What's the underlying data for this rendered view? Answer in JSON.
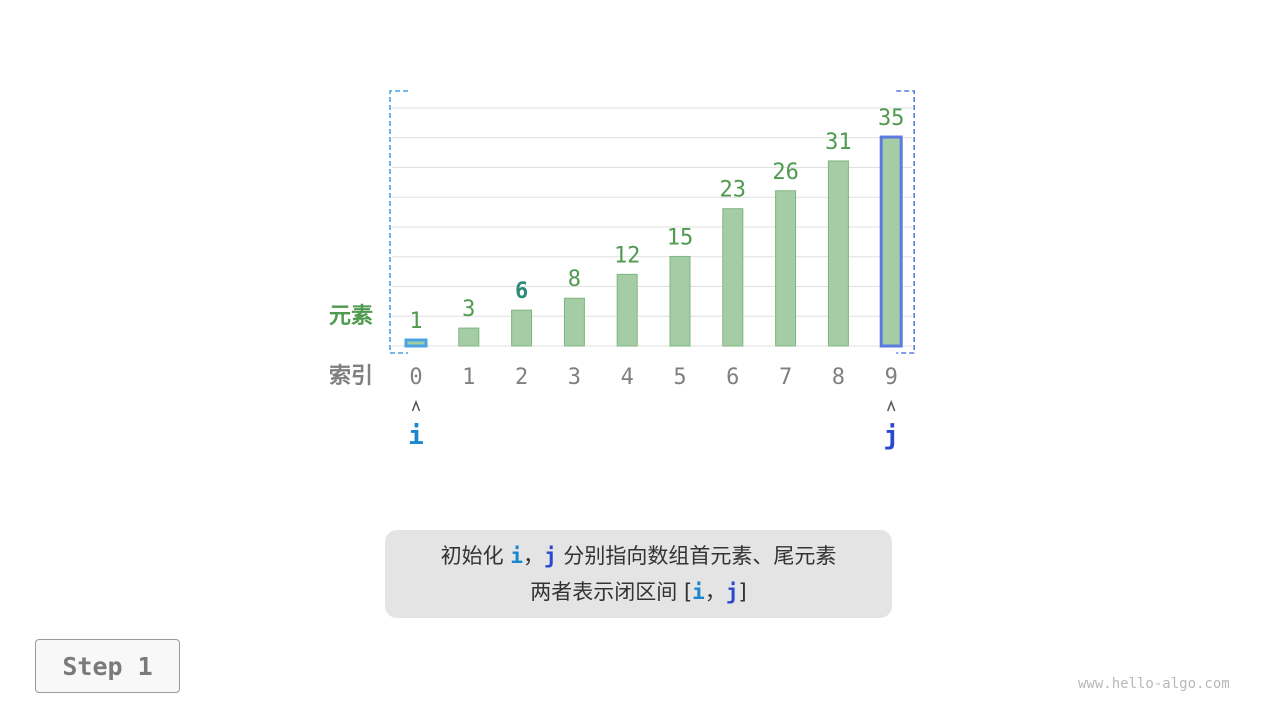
{
  "diagram": {
    "row_label_values": "元素",
    "row_label_indices": "索引",
    "indices": [
      "0",
      "1",
      "2",
      "3",
      "4",
      "5",
      "6",
      "7",
      "8",
      "9"
    ],
    "values": [
      1,
      3,
      6,
      8,
      12,
      15,
      23,
      26,
      31,
      35
    ],
    "highlight_value_index": 2,
    "pointer_i": {
      "label": "i",
      "index": 0
    },
    "pointer_j": {
      "label": "j",
      "index": 9
    },
    "arrow_glyph": "˄",
    "colors": {
      "bar_fill": "#a5cda5",
      "bar_stroke": "#7fb57f",
      "value_label": "#4f9a4f",
      "highlight_label": "#2e8b7a",
      "index_label": "#808080",
      "i_color": "#1a86d0",
      "j_color": "#2a47d0",
      "i_bracket": "#4aa3df",
      "j_bracket": "#5b7be0",
      "grid": "#e0e0e0"
    }
  },
  "caption": {
    "line1_prefix": "初始化 ",
    "line1_i": "i",
    "line1_sep": "，",
    "line1_j": "j",
    "line1_suffix": " 分别指向数组首元素、尾元素",
    "line2_prefix": "两者表示闭区间 [",
    "line2_i": "i",
    "line2_sep": "，",
    "line2_j": "j",
    "line2_suffix": "]"
  },
  "step_button": "Step 1",
  "footer": "www.hello-algo.com"
}
